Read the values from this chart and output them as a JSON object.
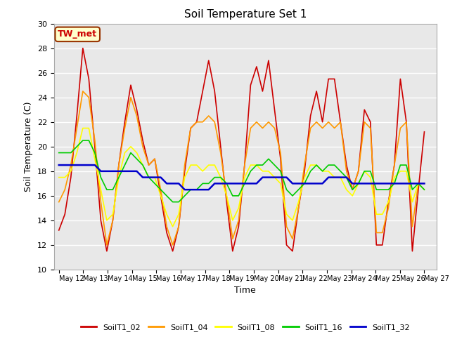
{
  "title": "Soil Temperature Set 1",
  "xlabel": "Time",
  "ylabel": "Soil Temperature (C)",
  "ylim": [
    10,
    30
  ],
  "annotation_text": "TW_met",
  "annotation_bg": "#ffffcc",
  "annotation_border": "#993300",
  "annotation_text_color": "#cc0000",
  "background_color": "#e8e8e8",
  "grid_color": "white",
  "series": {
    "SoilT1_02": {
      "color": "#cc0000",
      "linewidth": 1.2
    },
    "SoilT1_04": {
      "color": "#ff9900",
      "linewidth": 1.2
    },
    "SoilT1_08": {
      "color": "#ffff00",
      "linewidth": 1.2
    },
    "SoilT1_16": {
      "color": "#00cc00",
      "linewidth": 1.2
    },
    "SoilT1_32": {
      "color": "#0000cc",
      "linewidth": 1.8
    }
  },
  "x_tick_labels": [
    "May 12",
    "May 13",
    "May 14",
    "May 15",
    "May 16",
    "May 17",
    "May 18",
    "May 19",
    "May 20",
    "May 21",
    "May 22",
    "May 23",
    "May 24",
    "May 25",
    "May 26",
    "May 27"
  ],
  "SoilT1_02": [
    13.2,
    14.5,
    17.5,
    22.5,
    28.0,
    25.5,
    20.0,
    14.0,
    11.5,
    14.0,
    18.5,
    22.0,
    25.0,
    23.0,
    20.5,
    18.5,
    19.0,
    16.0,
    13.0,
    11.5,
    13.5,
    18.0,
    21.5,
    22.0,
    24.5,
    27.0,
    24.5,
    20.0,
    15.5,
    11.5,
    13.5,
    18.5,
    25.0,
    26.5,
    24.5,
    27.0,
    23.0,
    19.0,
    12.0,
    11.5,
    15.0,
    18.0,
    22.5,
    24.5,
    22.0,
    25.5,
    25.5,
    22.0,
    18.5,
    16.5,
    18.0,
    23.0,
    22.0,
    12.0,
    12.0,
    15.5,
    18.5,
    25.5,
    22.0,
    11.5,
    16.5,
    21.2
  ],
  "SoilT1_04": [
    15.5,
    16.5,
    18.5,
    21.5,
    24.5,
    24.0,
    20.5,
    15.5,
    12.0,
    14.0,
    18.5,
    21.5,
    24.0,
    22.5,
    20.0,
    18.5,
    19.0,
    16.5,
    13.5,
    12.0,
    13.5,
    18.5,
    21.5,
    22.0,
    22.0,
    22.5,
    22.0,
    19.5,
    16.0,
    12.5,
    14.0,
    18.5,
    21.5,
    22.0,
    21.5,
    22.0,
    21.5,
    19.5,
    13.5,
    12.5,
    15.0,
    18.5,
    21.5,
    22.0,
    21.5,
    22.0,
    21.5,
    22.0,
    18.0,
    16.5,
    18.0,
    22.0,
    21.5,
    13.0,
    13.0,
    15.0,
    18.5,
    21.5,
    22.0,
    13.5,
    17.0,
    17.0
  ],
  "SoilT1_08": [
    17.5,
    17.5,
    18.0,
    19.5,
    21.5,
    21.5,
    19.0,
    16.5,
    14.0,
    14.5,
    17.5,
    19.5,
    20.0,
    19.5,
    18.5,
    17.5,
    17.5,
    16.0,
    14.5,
    13.5,
    14.5,
    17.5,
    18.5,
    18.5,
    18.0,
    18.5,
    18.5,
    17.5,
    16.0,
    14.0,
    15.0,
    17.5,
    18.5,
    18.5,
    18.0,
    18.0,
    17.5,
    17.0,
    14.5,
    14.0,
    15.5,
    17.5,
    18.5,
    18.5,
    18.0,
    18.0,
    17.5,
    17.5,
    16.5,
    16.0,
    17.0,
    18.0,
    17.5,
    14.5,
    14.5,
    15.5,
    17.5,
    18.0,
    18.0,
    15.5,
    17.0,
    16.5
  ],
  "SoilT1_16": [
    19.5,
    19.5,
    19.5,
    20.0,
    20.5,
    20.5,
    19.5,
    17.5,
    16.5,
    16.5,
    17.5,
    18.5,
    19.5,
    19.0,
    18.5,
    17.5,
    17.0,
    16.5,
    16.0,
    15.5,
    15.5,
    16.0,
    16.5,
    16.5,
    17.0,
    17.0,
    17.5,
    17.5,
    17.0,
    16.0,
    16.0,
    17.0,
    18.0,
    18.5,
    18.5,
    19.0,
    18.5,
    18.0,
    16.5,
    16.0,
    16.5,
    17.0,
    18.0,
    18.5,
    18.0,
    18.5,
    18.5,
    18.0,
    17.5,
    16.5,
    17.0,
    18.0,
    18.0,
    16.5,
    16.5,
    16.5,
    17.0,
    18.5,
    18.5,
    16.5,
    17.0,
    16.5
  ],
  "SoilT1_32": [
    18.5,
    18.5,
    18.5,
    18.5,
    18.5,
    18.5,
    18.5,
    18.0,
    18.0,
    18.0,
    18.0,
    18.0,
    18.0,
    18.0,
    17.5,
    17.5,
    17.5,
    17.5,
    17.0,
    17.0,
    17.0,
    16.5,
    16.5,
    16.5,
    16.5,
    16.5,
    17.0,
    17.0,
    17.0,
    17.0,
    17.0,
    17.0,
    17.0,
    17.0,
    17.5,
    17.5,
    17.5,
    17.5,
    17.5,
    17.0,
    17.0,
    17.0,
    17.0,
    17.0,
    17.0,
    17.5,
    17.5,
    17.5,
    17.5,
    17.0,
    17.0,
    17.0,
    17.0,
    17.0,
    17.0,
    17.0,
    17.0,
    17.0,
    17.0,
    17.0,
    17.0,
    17.0
  ]
}
